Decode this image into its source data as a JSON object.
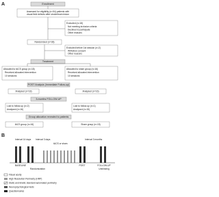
{
  "panel_a": {
    "label": "A",
    "enrollment": "Enrollment",
    "assessed": [
      "Assessed for eligibility (n=54) patients with",
      "visual field defects after stroke/brain lesion"
    ],
    "excluded_1": [
      "Excluded (n=18)",
      "Not meeting inclusion criteria",
      "Declined to participate",
      "Other reasons"
    ],
    "randomized": "Randomized (n=36)",
    "excluded_2": [
      "Excluded before 1st session (n=2)",
      "Withdrew consent",
      "Other reasons"
    ],
    "treatment": "Treatment",
    "allocated_tacs": [
      "Allocated to tACS group (n=18)",
      "Received allocated intervention",
      "10 sessions"
    ],
    "allocated_sham": [
      "Allocated to sham group (n=16)",
      "Received allocated intervention",
      "10 sessions"
    ],
    "post": "POST Analysis (Immediate Follow-up)",
    "analysed_tacs": "Analysed (n=18)",
    "analysed_sham": "Analysed (n=16)",
    "followup": "3-months FOLLOW-UP",
    "lost_tacs": [
      "Lost to follow-up (n=2)",
      "Analysed (n=16)"
    ],
    "lost_sham": [
      "Lost to follow-up (n=1)",
      "Analysed (n=15)"
    ],
    "reveal": "Group allocation revealed to patients",
    "final_tacs": "tACS group (n=16)",
    "final_sham": "Sham group (n=15)"
  },
  "panel_b": {
    "label": "B",
    "interval_1": "Interval 14 days",
    "interval_2": "Interval 3 days",
    "stimulation": "tACS or sham",
    "interval_3": "Interval 3 months",
    "baseline": "BASELINE",
    "randomization": "Randomization",
    "post": "POST",
    "followup": "FOLLOW-UP",
    "unblinding": "Unblinding",
    "legend": [
      "Visual acuity",
      "High Resolution Perimetry (HRP)",
      "Static and kinetic standard automated perimetry",
      "Neuropsychological tests",
      "Questionnaires"
    ]
  }
}
